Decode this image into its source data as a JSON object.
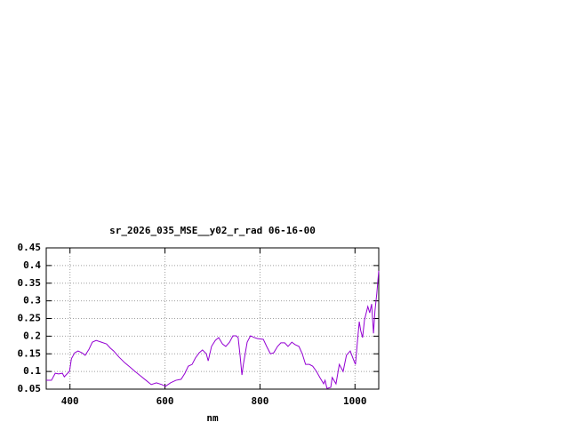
{
  "chart_data": {
    "type": "line",
    "title": "sr_2026_035_MSE__y02_r_rad 06-16-00",
    "x_label": "nm",
    "x": [
      350,
      361,
      369,
      376,
      384,
      388,
      395,
      399,
      403,
      410,
      417,
      425,
      432,
      440,
      447,
      455,
      466,
      477,
      485,
      492,
      503,
      515,
      526,
      537,
      548,
      560,
      571,
      582,
      593,
      601,
      612,
      623,
      634,
      642,
      649,
      657,
      664,
      672,
      679,
      687,
      691,
      698,
      706,
      713,
      721,
      728,
      736,
      743,
      750,
      754,
      758,
      762,
      765,
      773,
      780,
      788,
      795,
      807,
      814,
      822,
      829,
      837,
      844,
      852,
      859,
      867,
      874,
      882,
      889,
      896,
      904,
      911,
      919,
      926,
      934,
      937,
      941,
      949,
      952,
      960,
      967,
      975,
      982,
      990,
      997,
      1001,
      1005,
      1009,
      1012,
      1016,
      1020,
      1027,
      1031,
      1035,
      1039,
      1042,
      1046,
      1050
    ],
    "series": [
      {
        "color": "#9400d3",
        "values": [
          0.075,
          0.075,
          0.095,
          0.093,
          0.095,
          0.085,
          0.095,
          0.1,
          0.136,
          0.153,
          0.158,
          0.153,
          0.146,
          0.163,
          0.183,
          0.188,
          0.183,
          0.178,
          0.166,
          0.158,
          0.141,
          0.125,
          0.113,
          0.1,
          0.088,
          0.075,
          0.063,
          0.068,
          0.063,
          0.058,
          0.068,
          0.075,
          0.078,
          0.095,
          0.115,
          0.12,
          0.138,
          0.153,
          0.161,
          0.15,
          0.13,
          0.171,
          0.188,
          0.196,
          0.178,
          0.171,
          0.183,
          0.201,
          0.201,
          0.196,
          0.146,
          0.09,
          0.12,
          0.183,
          0.201,
          0.196,
          0.193,
          0.191,
          0.171,
          0.15,
          0.153,
          0.171,
          0.181,
          0.181,
          0.171,
          0.183,
          0.176,
          0.171,
          0.15,
          0.12,
          0.12,
          0.115,
          0.1,
          0.083,
          0.065,
          0.075,
          0.052,
          0.055,
          0.083,
          0.065,
          0.12,
          0.1,
          0.146,
          0.158,
          0.133,
          0.12,
          0.183,
          0.241,
          0.216,
          0.196,
          0.246,
          0.284,
          0.266,
          0.291,
          0.208,
          0.271,
          0.322,
          0.385
        ]
      }
    ],
    "xlim": [
      350,
      1050
    ],
    "xticks": [
      400,
      600,
      800,
      1000
    ],
    "ylim": [
      0.05,
      0.45
    ],
    "yticks": [
      0.05,
      0.1,
      0.15,
      0.2,
      0.25,
      0.3,
      0.35,
      0.4,
      0.45
    ],
    "grid": true
  }
}
